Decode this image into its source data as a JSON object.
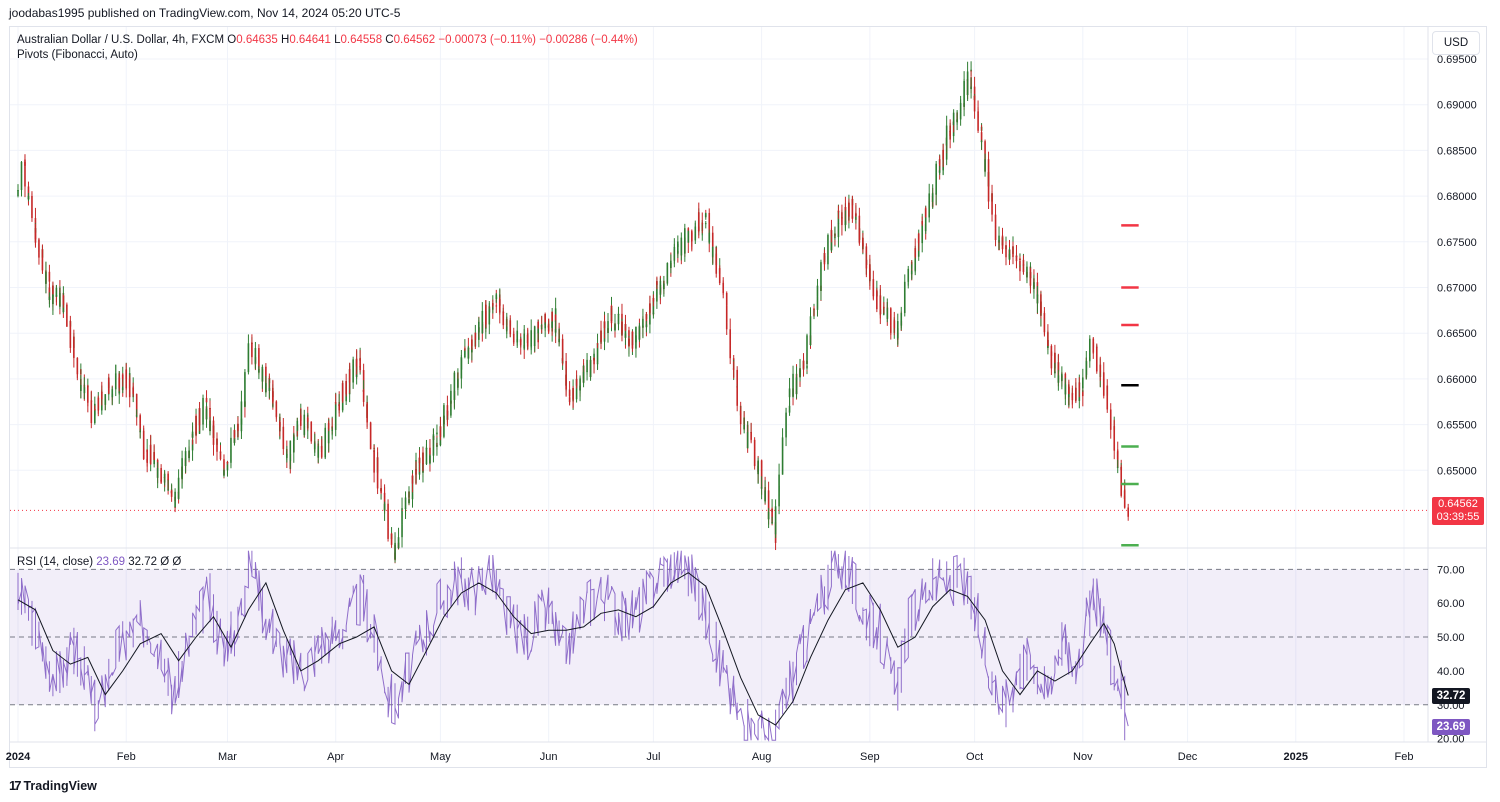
{
  "header": {
    "publisher": "joodabas1995 published on TradingView.com, Nov 14, 2024 05:20 UTC-5"
  },
  "legend": {
    "symbol": "Australian Dollar / U.S. Dollar, 4h, FXCM",
    "o_label": "O",
    "o_value": "0.64635",
    "h_label": "H",
    "h_value": "0.64641",
    "l_label": "L",
    "l_value": "0.64558",
    "c_label": "C",
    "c_value": "0.64562",
    "change": "−0.00073 (−0.11%)",
    "change2": "−0.00286 (−0.44%)",
    "pivots": "Pivots (Fibonacci, Auto)"
  },
  "rsi_legend": {
    "name": "RSI (14, close)",
    "rsi_value": "23.69",
    "ma_value": "32.72",
    "extra1": "Ø",
    "extra2": "Ø"
  },
  "currency": "USD",
  "price_tag": {
    "price": "0.64562",
    "countdown": "03:39:55"
  },
  "rsi_tags": {
    "ma": "32.72",
    "rsi": "23.69"
  },
  "brand": {
    "logo_text": "TradingView",
    "logo_icon": "tradingview-logo-icon"
  },
  "colors": {
    "up": "#26a69a",
    "down": "#ef5350",
    "candle_up": "#2e7d32",
    "candle_down": "#c62828",
    "rsi_line": "#7e57c2",
    "rsi_ma": "#131722",
    "rsi_band": "#7e57c2",
    "pivot_r": "#f23645",
    "pivot_p": "#000000",
    "pivot_s": "#4caf50",
    "grid": "#f0f3fa"
  },
  "chart_data": [
    {
      "type": "candlestick",
      "title": "Australian Dollar / U.S. Dollar, 4h, FXCM",
      "y_ticks": [
        "0.69500",
        "0.69000",
        "0.68500",
        "0.68000",
        "0.67500",
        "0.67000",
        "0.66500",
        "0.66000",
        "0.65500",
        "0.65000"
      ],
      "ylim": [
        0.6415,
        0.6985
      ],
      "x_ticks": [
        "2024",
        "Feb",
        "Mar",
        "Apr",
        "May",
        "Jun",
        "Jul",
        "Aug",
        "Sep",
        "Oct",
        "Nov",
        "Dec",
        "2025",
        "Feb"
      ],
      "x_months": [
        "2024-01",
        "2024-02",
        "2024-03",
        "2024-04",
        "2024-05",
        "2024-06",
        "2024-07",
        "2024-08",
        "2024-09",
        "2024-10",
        "2024-11",
        "2024-12",
        "2025-01",
        "2025-02"
      ],
      "price_series": [
        [
          "2024-01-01",
          0.68
        ],
        [
          "2024-01-03",
          0.684
        ],
        [
          "2024-01-06",
          0.676
        ],
        [
          "2024-01-10",
          0.67
        ],
        [
          "2024-01-15",
          0.668
        ],
        [
          "2024-01-19",
          0.66
        ],
        [
          "2024-01-23",
          0.656
        ],
        [
          "2024-01-27",
          0.659
        ],
        [
          "2024-02-02",
          0.66
        ],
        [
          "2024-02-07",
          0.652
        ],
        [
          "2024-02-13",
          0.649
        ],
        [
          "2024-02-15",
          0.646
        ],
        [
          "2024-02-20",
          0.654
        ],
        [
          "2024-02-24",
          0.657
        ],
        [
          "2024-02-29",
          0.65
        ],
        [
          "2024-03-05",
          0.655
        ],
        [
          "2024-03-08",
          0.664
        ],
        [
          "2024-03-14",
          0.658
        ],
        [
          "2024-03-19",
          0.651
        ],
        [
          "2024-03-22",
          0.656
        ],
        [
          "2024-03-28",
          0.652
        ],
        [
          "2024-04-04",
          0.659
        ],
        [
          "2024-04-08",
          0.662
        ],
        [
          "2024-04-12",
          0.652
        ],
        [
          "2024-04-18",
          0.641
        ],
        [
          "2024-04-24",
          0.65
        ],
        [
          "2024-04-30",
          0.653
        ],
        [
          "2024-05-07",
          0.661
        ],
        [
          "2024-05-13",
          0.666
        ],
        [
          "2024-05-17",
          0.669
        ],
        [
          "2024-05-23",
          0.664
        ],
        [
          "2024-05-29",
          0.665
        ],
        [
          "2024-06-03",
          0.667
        ],
        [
          "2024-06-07",
          0.658
        ],
        [
          "2024-06-14",
          0.662
        ],
        [
          "2024-06-19",
          0.667
        ],
        [
          "2024-06-26",
          0.664
        ],
        [
          "2024-07-03",
          0.67
        ],
        [
          "2024-07-08",
          0.674
        ],
        [
          "2024-07-12",
          0.676
        ],
        [
          "2024-07-16",
          0.678
        ],
        [
          "2024-07-22",
          0.668
        ],
        [
          "2024-07-26",
          0.656
        ],
        [
          "2024-07-31",
          0.651
        ],
        [
          "2024-08-05",
          0.643
        ],
        [
          "2024-08-09",
          0.658
        ],
        [
          "2024-08-14",
          0.662
        ],
        [
          "2024-08-19",
          0.673
        ],
        [
          "2024-08-23",
          0.677
        ],
        [
          "2024-08-27",
          0.679
        ],
        [
          "2024-09-03",
          0.669
        ],
        [
          "2024-09-09",
          0.665
        ],
        [
          "2024-09-13",
          0.672
        ],
        [
          "2024-09-19",
          0.68
        ],
        [
          "2024-09-24",
          0.687
        ],
        [
          "2024-09-30",
          0.693
        ],
        [
          "2024-10-03",
          0.687
        ],
        [
          "2024-10-08",
          0.675
        ],
        [
          "2024-10-14",
          0.673
        ],
        [
          "2024-10-18",
          0.671
        ],
        [
          "2024-10-23",
          0.663
        ],
        [
          "2024-10-28",
          0.658
        ],
        [
          "2024-11-01",
          0.659
        ],
        [
          "2024-11-04",
          0.664
        ],
        [
          "2024-11-07",
          0.66
        ],
        [
          "2024-11-11",
          0.652
        ],
        [
          "2024-11-14",
          0.6456
        ]
      ],
      "last_price": 0.64562,
      "pivots": [
        {
          "label": "R3",
          "value": 0.6768,
          "color": "#f23645"
        },
        {
          "label": "R2",
          "value": 0.67,
          "color": "#f23645"
        },
        {
          "label": "R1",
          "value": 0.6659,
          "color": "#f23645"
        },
        {
          "label": "P",
          "value": 0.6593,
          "color": "#000000"
        },
        {
          "label": "S1",
          "value": 0.6526,
          "color": "#4caf50"
        },
        {
          "label": "S2",
          "value": 0.6485,
          "color": "#4caf50"
        },
        {
          "label": "S3",
          "value": 0.6418,
          "color": "#4caf50"
        }
      ],
      "pivot_x_range": [
        "2024-11-12",
        "2024-11-17"
      ]
    },
    {
      "type": "line",
      "title": "RSI (14, close)",
      "y_ticks": [
        "70.00",
        "60.00",
        "50.00",
        "40.00",
        "30.00",
        "20.00"
      ],
      "ylim": [
        19,
        76
      ],
      "bands": {
        "upper": 70,
        "middle": 50,
        "lower": 30
      },
      "series": [
        {
          "name": "RSI",
          "values": [
            [
              "2024-01-01",
              63
            ],
            [
              "2024-01-05",
              56
            ],
            [
              "2024-01-09",
              44
            ],
            [
              "2024-01-13",
              38
            ],
            [
              "2024-01-17",
              46
            ],
            [
              "2024-01-20",
              42
            ],
            [
              "2024-01-24",
              27
            ],
            [
              "2024-01-29",
              45
            ],
            [
              "2024-02-03",
              51
            ],
            [
              "2024-02-07",
              55
            ],
            [
              "2024-02-12",
              46
            ],
            [
              "2024-02-15",
              33
            ],
            [
              "2024-02-20",
              50
            ],
            [
              "2024-02-25",
              62
            ],
            [
              "2024-02-29",
              48
            ],
            [
              "2024-03-04",
              52
            ],
            [
              "2024-03-08",
              74
            ],
            [
              "2024-03-13",
              55
            ],
            [
              "2024-03-18",
              44
            ],
            [
              "2024-03-23",
              40
            ],
            [
              "2024-03-28",
              48
            ],
            [
              "2024-04-03",
              52
            ],
            [
              "2024-04-09",
              62
            ],
            [
              "2024-04-13",
              48
            ],
            [
              "2024-04-18",
              29
            ],
            [
              "2024-04-24",
              44
            ],
            [
              "2024-04-30",
              58
            ],
            [
              "2024-05-06",
              67
            ],
            [
              "2024-05-11",
              64
            ],
            [
              "2024-05-16",
              70
            ],
            [
              "2024-05-20",
              56
            ],
            [
              "2024-05-26",
              50
            ],
            [
              "2024-06-01",
              58
            ],
            [
              "2024-06-06",
              45
            ],
            [
              "2024-06-12",
              60
            ],
            [
              "2024-06-17",
              63
            ],
            [
              "2024-06-23",
              55
            ],
            [
              "2024-06-28",
              59
            ],
            [
              "2024-07-04",
              70
            ],
            [
              "2024-07-09",
              72
            ],
            [
              "2024-07-14",
              66
            ],
            [
              "2024-07-18",
              52
            ],
            [
              "2024-07-22",
              37
            ],
            [
              "2024-07-27",
              25
            ],
            [
              "2024-07-31",
              22
            ],
            [
              "2024-08-05",
              20
            ],
            [
              "2024-08-09",
              35
            ],
            [
              "2024-08-13",
              46
            ],
            [
              "2024-08-18",
              59
            ],
            [
              "2024-08-22",
              72
            ],
            [
              "2024-08-26",
              70
            ],
            [
              "2024-08-30",
              58
            ],
            [
              "2024-09-04",
              52
            ],
            [
              "2024-09-09",
              33
            ],
            [
              "2024-09-13",
              55
            ],
            [
              "2024-09-18",
              65
            ],
            [
              "2024-09-23",
              66
            ],
            [
              "2024-09-28",
              67
            ],
            [
              "2024-10-02",
              55
            ],
            [
              "2024-10-06",
              40
            ],
            [
              "2024-10-10",
              28
            ],
            [
              "2024-10-14",
              41
            ],
            [
              "2024-10-18",
              44
            ],
            [
              "2024-10-22",
              33
            ],
            [
              "2024-10-26",
              50
            ],
            [
              "2024-10-30",
              41
            ],
            [
              "2024-11-03",
              56
            ],
            [
              "2024-11-06",
              62
            ],
            [
              "2024-11-09",
              45
            ],
            [
              "2024-11-12",
              37
            ],
            [
              "2024-11-14",
              23.69
            ]
          ]
        },
        {
          "name": "RSI-based MA",
          "values": [
            [
              "2024-01-01",
              61
            ],
            [
              "2024-01-06",
              58
            ],
            [
              "2024-01-11",
              46
            ],
            [
              "2024-01-16",
              42
            ],
            [
              "2024-01-21",
              44
            ],
            [
              "2024-01-26",
              33
            ],
            [
              "2024-01-31",
              40
            ],
            [
              "2024-02-05",
              48
            ],
            [
              "2024-02-11",
              51
            ],
            [
              "2024-02-16",
              43
            ],
            [
              "2024-02-21",
              50
            ],
            [
              "2024-02-26",
              56
            ],
            [
              "2024-03-02",
              47
            ],
            [
              "2024-03-07",
              58
            ],
            [
              "2024-03-12",
              66
            ],
            [
              "2024-03-17",
              52
            ],
            [
              "2024-03-22",
              40
            ],
            [
              "2024-03-27",
              43
            ],
            [
              "2024-04-02",
              48
            ],
            [
              "2024-04-07",
              50
            ],
            [
              "2024-04-12",
              53
            ],
            [
              "2024-04-17",
              40
            ],
            [
              "2024-04-22",
              36
            ],
            [
              "2024-04-27",
              46
            ],
            [
              "2024-05-02",
              56
            ],
            [
              "2024-05-07",
              63
            ],
            [
              "2024-05-12",
              66
            ],
            [
              "2024-05-17",
              63
            ],
            [
              "2024-05-22",
              56
            ],
            [
              "2024-05-27",
              51
            ],
            [
              "2024-06-01",
              52
            ],
            [
              "2024-06-06",
              52
            ],
            [
              "2024-06-11",
              53
            ],
            [
              "2024-06-16",
              57
            ],
            [
              "2024-06-21",
              58
            ],
            [
              "2024-06-26",
              56
            ],
            [
              "2024-07-01",
              59
            ],
            [
              "2024-07-06",
              66
            ],
            [
              "2024-07-11",
              69
            ],
            [
              "2024-07-16",
              65
            ],
            [
              "2024-07-21",
              52
            ],
            [
              "2024-07-26",
              38
            ],
            [
              "2024-07-31",
              27
            ],
            [
              "2024-08-05",
              24
            ],
            [
              "2024-08-10",
              31
            ],
            [
              "2024-08-15",
              44
            ],
            [
              "2024-08-20",
              55
            ],
            [
              "2024-08-25",
              64
            ],
            [
              "2024-08-30",
              66
            ],
            [
              "2024-09-04",
              58
            ],
            [
              "2024-09-09",
              47
            ],
            [
              "2024-09-14",
              50
            ],
            [
              "2024-09-19",
              59
            ],
            [
              "2024-09-24",
              64
            ],
            [
              "2024-09-29",
              62
            ],
            [
              "2024-10-04",
              55
            ],
            [
              "2024-10-09",
              40
            ],
            [
              "2024-10-14",
              33
            ],
            [
              "2024-10-19",
              40
            ],
            [
              "2024-10-24",
              37
            ],
            [
              "2024-10-29",
              40
            ],
            [
              "2024-11-03",
              48
            ],
            [
              "2024-11-07",
              54
            ],
            [
              "2024-11-10",
              48
            ],
            [
              "2024-11-12",
              40
            ],
            [
              "2024-11-14",
              32.72
            ]
          ]
        }
      ]
    }
  ]
}
